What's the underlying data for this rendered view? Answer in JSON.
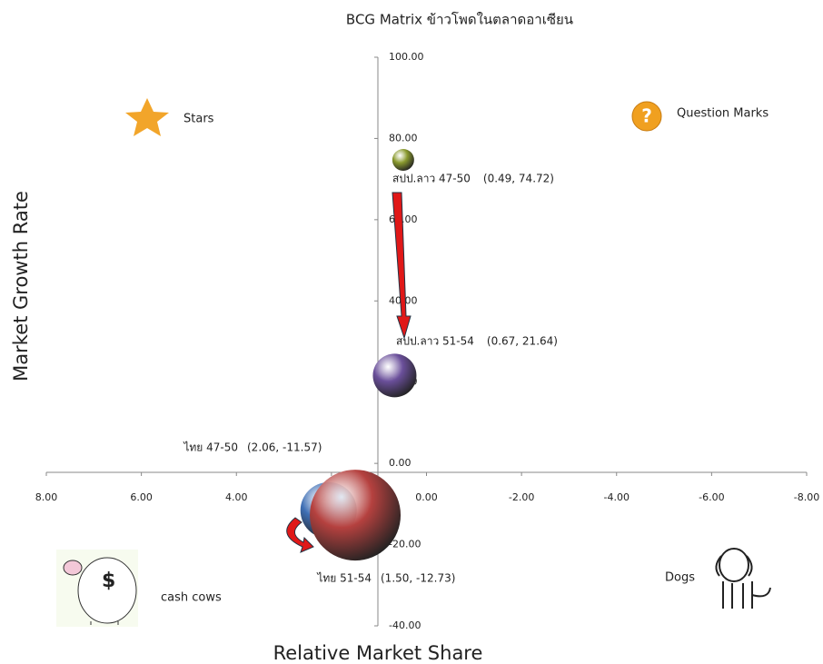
{
  "chart_data": {
    "type": "bubble",
    "title": "BCG Matrix ข้าวโพดในตลาดอาเซียน",
    "x_label": "Relative Market Share",
    "y_label": "Market Growth Rate",
    "xlim": [
      8,
      -8
    ],
    "xticks": [
      {
        "value": 8,
        "label": "8.00"
      },
      {
        "value": 6,
        "label": "6.00"
      },
      {
        "value": 4,
        "label": "4.00"
      },
      {
        "value": 2,
        "label": "2.00"
      },
      {
        "value": 0,
        "label": "0.00"
      },
      {
        "value": -2,
        "label": "-2.00"
      },
      {
        "value": -4,
        "label": "-4.00"
      },
      {
        "value": -6,
        "label": "-6.00"
      },
      {
        "value": -8,
        "label": "-8.00"
      }
    ],
    "ylim": [
      -40,
      100
    ],
    "yticks": [
      {
        "value": 100,
        "label": "100.00"
      },
      {
        "value": 80,
        "label": "80.00"
      },
      {
        "value": 60,
        "label": "60.00"
      },
      {
        "value": 40,
        "label": "40.00"
      },
      {
        "value": 20,
        "label": "20.00"
      },
      {
        "value": 0,
        "label": "0.00"
      },
      {
        "value": -20,
        "label": "-20.00"
      },
      {
        "value": -40,
        "label": "-40.00"
      }
    ],
    "quadrants": [
      "Stars",
      "Question Marks",
      "cash cows",
      "Dogs"
    ],
    "series": [
      {
        "name": "สปป.ลาว 47-50",
        "color": "#8a9a2e",
        "x": 0.49,
        "y": 74.72,
        "size": 12,
        "value_label": "(0.49, 74.72)"
      },
      {
        "name": "สปป.ลาว 51-54",
        "color": "#6a4f9a",
        "x": 0.67,
        "y": 21.64,
        "size": 24,
        "value_label": "(0.67, 21.64)"
      },
      {
        "name": "ไทย 47-50",
        "color": "#3f6fb5",
        "x": 2.06,
        "y": -11.57,
        "size": 31,
        "value_label": "(2.06, -11.57)"
      },
      {
        "name": "ไทย 51-54",
        "color": "#b5413f",
        "x": 1.5,
        "y": -12.73,
        "size": 50,
        "value_label": "(1.50, -12.73)"
      }
    ]
  }
}
